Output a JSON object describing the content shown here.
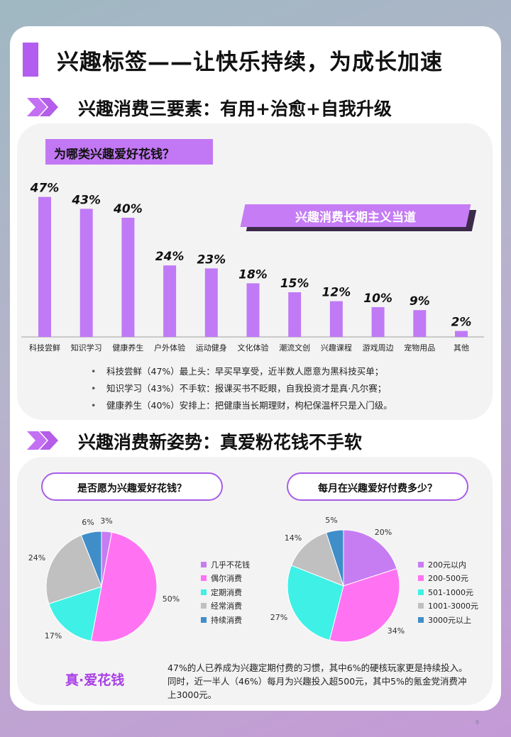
{
  "page": {
    "title": "兴趣标签——让快乐持续，为成长加速",
    "page_number": "9"
  },
  "section1": {
    "title": "兴趣消费三要素：有用+治愈+自我升级",
    "tag": "为哪类兴趣爱好花钱？",
    "banner": "兴趣消费长期主义当道",
    "bullets": [
      "科技尝鲜（47%）最上头：早买早享受，近半数人愿意为黑科技买单；",
      "知识学习（43%）不手软：报课买书不眨眼，自我投资才是真·凡尔赛；",
      "健康养生（40%）安排上：把健康当长期理财，枸杞保温杯只是入门级。"
    ]
  },
  "section2": {
    "title": "兴趣消费新姿势：真爱粉花钱不手软",
    "pill_left": "是否愿为兴趣爱好花钱？",
    "pill_right": "每月在兴趣爱好付费多少？",
    "highlight": "真·爱花钱",
    "summary": "47%的人已养成为兴趣定期付费的习惯，其中6%的硬核玩家更是持续投入。同时，近一半人（46%）每月为兴趣投入超500元，其中5%的氪金党消费冲上3000元。"
  },
  "colors": {
    "accent": "#b25cf0",
    "bar": "#c07af5",
    "pie": [
      "#c77df2",
      "#ff73f2",
      "#3ff0e6",
      "#c0c0c0",
      "#3f8ec9"
    ]
  },
  "chart_data": [
    {
      "type": "bar",
      "title": "",
      "categories": [
        "科技尝鲜",
        "知识学习",
        "健康养生",
        "户外体验",
        "运动健身",
        "文化体验",
        "潮流文创",
        "兴趣课程",
        "游戏周边",
        "宠物用品",
        "其他"
      ],
      "values": [
        47,
        43,
        40,
        24,
        23,
        18,
        15,
        12,
        10,
        9,
        2
      ],
      "value_labels": [
        "47%",
        "43%",
        "40%",
        "24%",
        "23%",
        "18%",
        "15%",
        "12%",
        "10%",
        "9%",
        "2%"
      ],
      "xlabel": "",
      "ylabel": "",
      "ylim": [
        0,
        50
      ],
      "grid": false
    },
    {
      "type": "pie",
      "title": "",
      "labels": [
        "几乎不花钱",
        "偶尔消费",
        "定期消费",
        "经常消费",
        "持续消费"
      ],
      "values": [
        3,
        50,
        17,
        24,
        6
      ],
      "value_labels": [
        "3%",
        "50%",
        "17%",
        "24%",
        "6%"
      ],
      "legend": "right"
    },
    {
      "type": "pie",
      "title": "",
      "labels": [
        "200元以内",
        "200-500元",
        "501-1000元",
        "1001-3000元",
        "3000元以上"
      ],
      "values": [
        20,
        34,
        27,
        14,
        5
      ],
      "value_labels": [
        "20%",
        "34%",
        "27%",
        "14%",
        "5%"
      ],
      "legend": "right"
    }
  ]
}
